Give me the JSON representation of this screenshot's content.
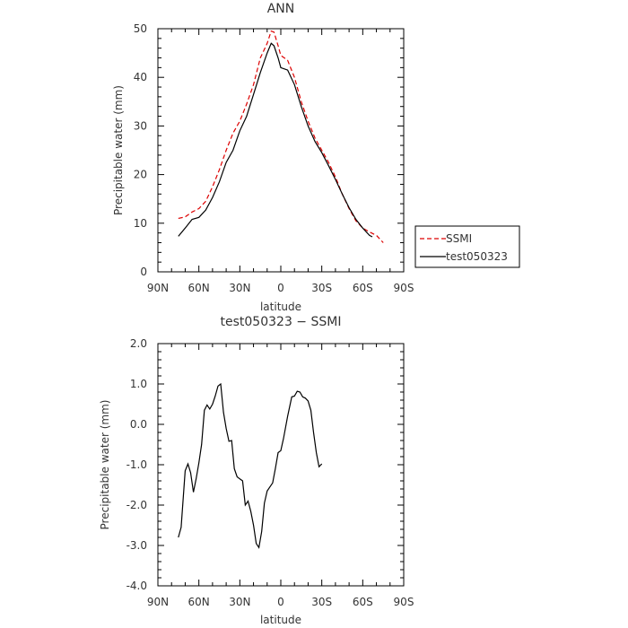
{
  "chart_data": [
    {
      "type": "line",
      "title": "ANN",
      "xlabel": "latitude",
      "ylabel": "Precipitable water (mm)",
      "x_ticks": [
        "90N",
        "60N",
        "30N",
        "0",
        "30S",
        "60S",
        "90S"
      ],
      "x_tick_values": [
        90,
        60,
        30,
        0,
        -30,
        -60,
        -90
      ],
      "xlim": [
        90,
        -90
      ],
      "ylim": [
        0,
        50
      ],
      "y_ticks": [
        "0",
        "10",
        "20",
        "30",
        "40",
        "50"
      ],
      "y_tick_values": [
        0,
        10,
        20,
        30,
        40,
        50
      ],
      "legend_position": "right-bottom, outside plot",
      "series": [
        {
          "name": "SSMI",
          "color": "#dd0000",
          "dash": "dashed",
          "points": [
            [
              75,
              11
            ],
            [
              70,
              11.3
            ],
            [
              65,
              12.3
            ],
            [
              60,
              13
            ],
            [
              55,
              14.5
            ],
            [
              50,
              17.5
            ],
            [
              45,
              21
            ],
            [
              40,
              25
            ],
            [
              35,
              28.5
            ],
            [
              30,
              31
            ],
            [
              25,
              34.5
            ],
            [
              20,
              38.5
            ],
            [
              15,
              44
            ],
            [
              10,
              47
            ],
            [
              7,
              49.5
            ],
            [
              5,
              49.3
            ],
            [
              2,
              46.5
            ],
            [
              0,
              44.5
            ],
            [
              -5,
              43.5
            ],
            [
              -10,
              40
            ],
            [
              -15,
              35
            ],
            [
              -20,
              31
            ],
            [
              -25,
              27.5
            ],
            [
              -30,
              25
            ],
            [
              -35,
              22.5
            ],
            [
              -40,
              19.5
            ],
            [
              -45,
              16
            ],
            [
              -50,
              13
            ],
            [
              -55,
              10.5
            ],
            [
              -60,
              9
            ],
            [
              -65,
              8.2
            ],
            [
              -70,
              7.5
            ],
            [
              -75,
              6
            ]
          ]
        },
        {
          "name": "test050323",
          "color": "#000000",
          "dash": "solid",
          "points": [
            [
              75,
              7.3
            ],
            [
              70,
              9
            ],
            [
              65,
              10.8
            ],
            [
              60,
              11.2
            ],
            [
              55,
              12.7
            ],
            [
              50,
              15.3
            ],
            [
              45,
              18.5
            ],
            [
              40,
              22.5
            ],
            [
              35,
              25
            ],
            [
              30,
              29
            ],
            [
              25,
              32
            ],
            [
              20,
              36.5
            ],
            [
              15,
              41
            ],
            [
              10,
              45
            ],
            [
              7,
              47
            ],
            [
              5,
              46.5
            ],
            [
              2,
              44
            ],
            [
              0,
              42
            ],
            [
              -5,
              41.5
            ],
            [
              -10,
              38.5
            ],
            [
              -15,
              34
            ],
            [
              -20,
              30
            ],
            [
              -25,
              26.8
            ],
            [
              -30,
              24.5
            ],
            [
              -35,
              21.8
            ],
            [
              -40,
              19
            ],
            [
              -45,
              16
            ],
            [
              -50,
              13.2
            ],
            [
              -55,
              10.8
            ],
            [
              -60,
              9
            ],
            [
              -65,
              7.5
            ],
            [
              -67,
              7.2
            ]
          ]
        }
      ]
    },
    {
      "type": "line",
      "title": "test050323 − SSMI",
      "xlabel": "latitude",
      "ylabel": "Precipitable water (mm)",
      "x_ticks": [
        "90N",
        "60N",
        "30N",
        "0",
        "30S",
        "60S",
        "90S"
      ],
      "x_tick_values": [
        90,
        60,
        30,
        0,
        -30,
        -60,
        -90
      ],
      "xlim": [
        90,
        -90
      ],
      "ylim": [
        -4,
        2
      ],
      "y_ticks": [
        "-4.0",
        "-3.0",
        "-2.0",
        "-1.0",
        "0.0",
        "1.0",
        "2.0"
      ],
      "y_tick_values": [
        -4,
        -3,
        -2,
        -1,
        0,
        1,
        2
      ],
      "series": [
        {
          "name": "",
          "color": "#000000",
          "dash": "solid",
          "points": [
            [
              75,
              -2.8
            ],
            [
              73,
              -2.55
            ],
            [
              70,
              -1.15
            ],
            [
              68,
              -0.98
            ],
            [
              66,
              -1.2
            ],
            [
              64,
              -1.68
            ],
            [
              62,
              -1.35
            ],
            [
              60,
              -0.95
            ],
            [
              58,
              -0.5
            ],
            [
              56,
              0.35
            ],
            [
              54,
              0.48
            ],
            [
              52,
              0.38
            ],
            [
              50,
              0.5
            ],
            [
              48,
              0.7
            ],
            [
              46,
              0.95
            ],
            [
              44,
              1.0
            ],
            [
              42,
              0.3
            ],
            [
              40,
              -0.1
            ],
            [
              38,
              -0.42
            ],
            [
              36,
              -0.4
            ],
            [
              34,
              -1.1
            ],
            [
              32,
              -1.3
            ],
            [
              30,
              -1.35
            ],
            [
              28,
              -1.4
            ],
            [
              26,
              -2.0
            ],
            [
              24,
              -1.9
            ],
            [
              22,
              -2.15
            ],
            [
              20,
              -2.5
            ],
            [
              18,
              -2.95
            ],
            [
              16,
              -3.05
            ],
            [
              14,
              -2.65
            ],
            [
              12,
              -1.95
            ],
            [
              10,
              -1.65
            ],
            [
              8,
              -1.55
            ],
            [
              6,
              -1.45
            ],
            [
              4,
              -1.1
            ],
            [
              2,
              -0.7
            ],
            [
              0,
              -0.65
            ],
            [
              -2,
              -0.35
            ],
            [
              -5,
              0.2
            ],
            [
              -8,
              0.68
            ],
            [
              -10,
              0.7
            ],
            [
              -12,
              0.82
            ],
            [
              -14,
              0.8
            ],
            [
              -16,
              0.68
            ],
            [
              -18,
              0.65
            ],
            [
              -20,
              0.58
            ],
            [
              -22,
              0.35
            ],
            [
              -24,
              -0.2
            ],
            [
              -26,
              -0.7
            ],
            [
              -28,
              -1.05
            ],
            [
              -30,
              -0.98
            ]
          ]
        }
      ]
    }
  ]
}
